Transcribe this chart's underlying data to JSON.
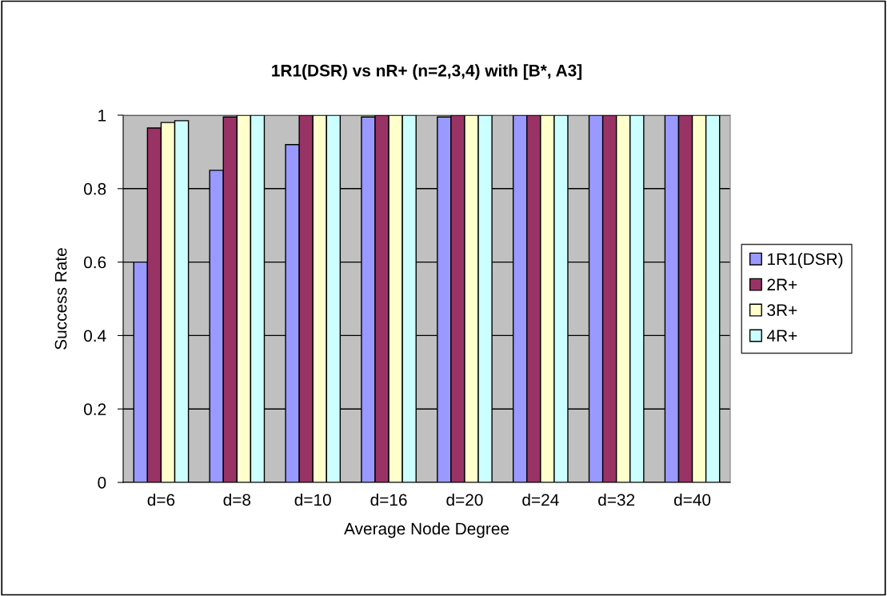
{
  "chart_data": {
    "type": "bar",
    "title": "1R1(DSR) vs nR+ (n=2,3,4) with [B*, A3]",
    "xlabel": "Average Node Degree",
    "ylabel": "Success Rate",
    "categories": [
      "d=6",
      "d=8",
      "d=10",
      "d=16",
      "d=20",
      "d=24",
      "d=32",
      "d=40"
    ],
    "series": [
      {
        "name": "1R1(DSR)",
        "color": "#9999ff",
        "values": [
          0.6,
          0.85,
          0.92,
          0.995,
          0.995,
          1,
          1,
          1
        ]
      },
      {
        "name": "2R+",
        "color": "#993366",
        "values": [
          0.965,
          0.995,
          1,
          1,
          1,
          1,
          1,
          1
        ]
      },
      {
        "name": "3R+",
        "color": "#ffffcc",
        "values": [
          0.98,
          1,
          1,
          1,
          1,
          1,
          1,
          1
        ]
      },
      {
        "name": "4R+",
        "color": "#ccffff",
        "values": [
          0.985,
          1,
          1,
          1,
          1,
          1,
          1,
          1
        ]
      }
    ],
    "ylim": [
      0,
      1
    ],
    "yticks": [
      0,
      0.2,
      0.4,
      0.6,
      0.8,
      1
    ],
    "grid": "y",
    "legend": "right"
  }
}
